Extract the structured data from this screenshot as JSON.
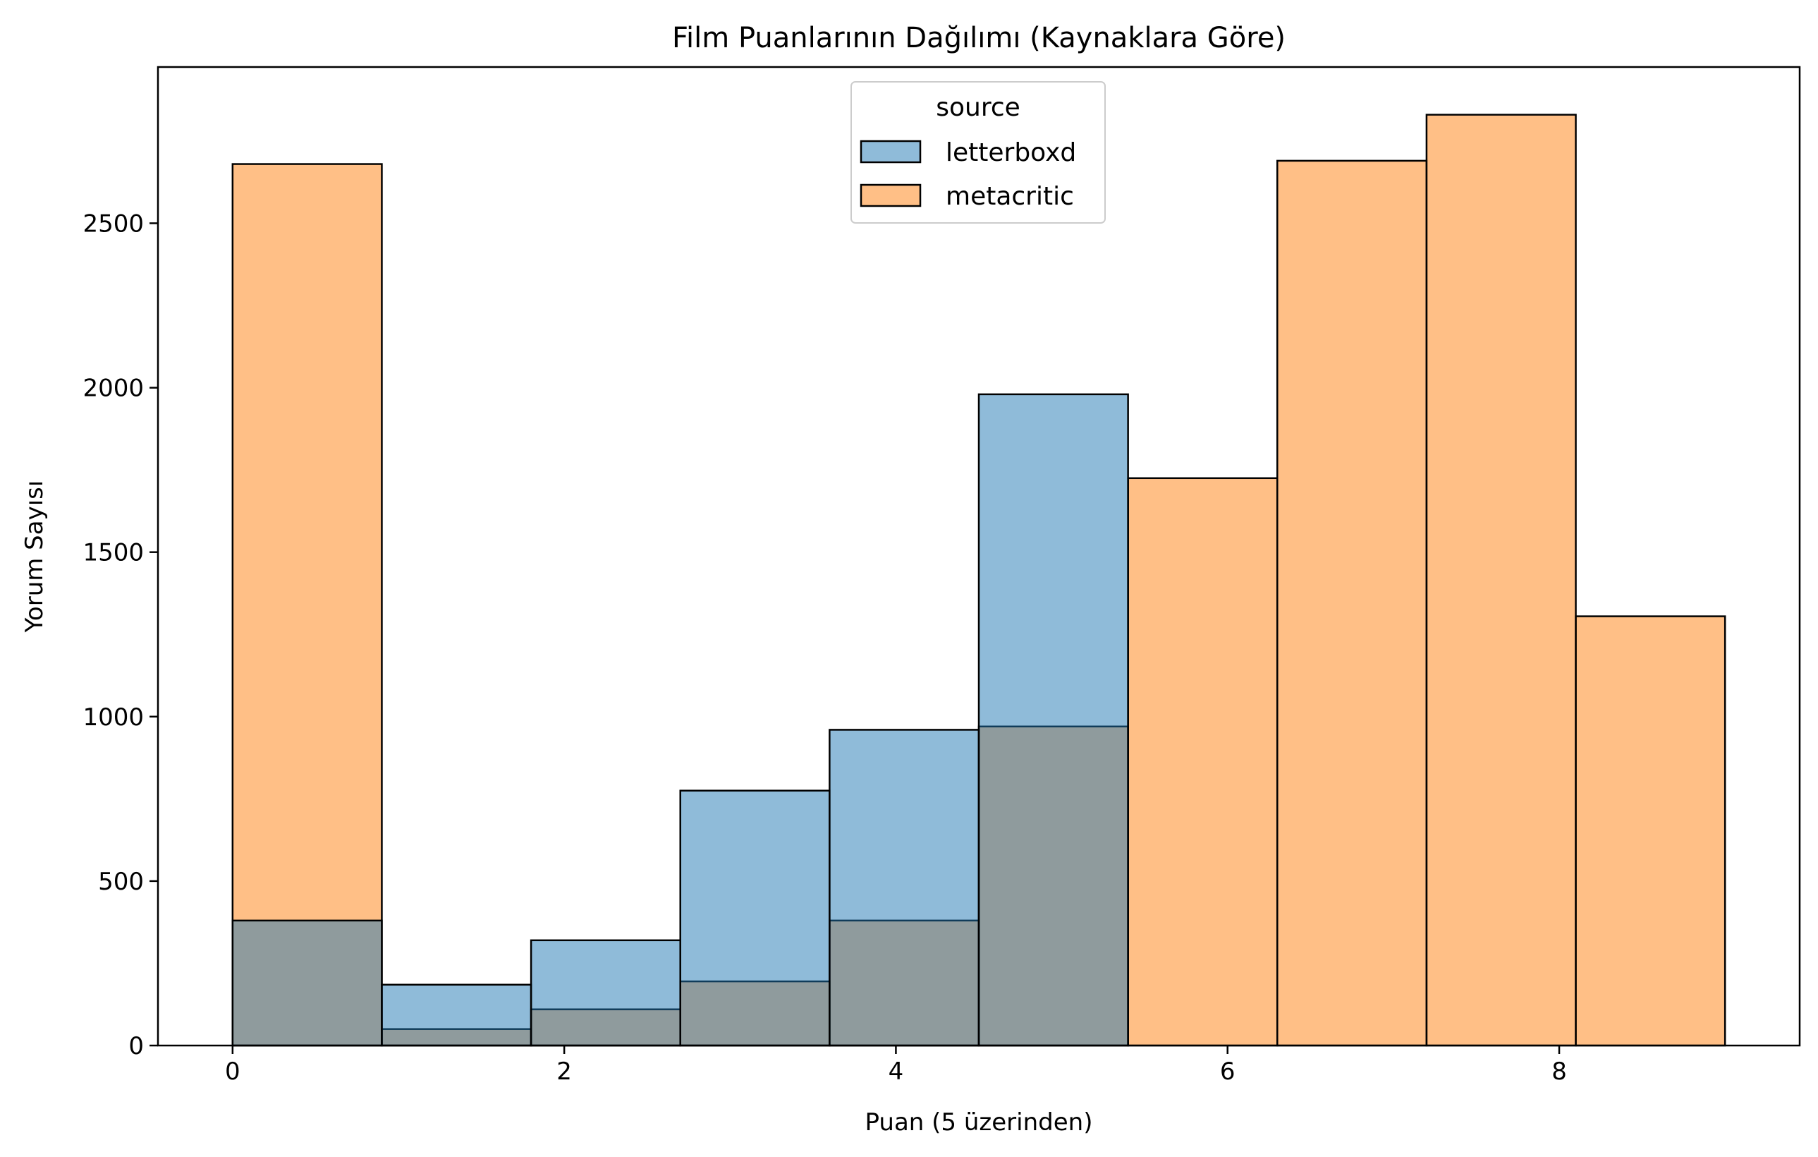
{
  "chart_data": {
    "type": "bar",
    "subtype": "overlaid-histogram",
    "title": "Film Puanlarının Dağılımı (Kaynaklara Göre)",
    "xlabel": "Puan (5 üzerinden)",
    "ylabel": "Yorum Sayısı",
    "xlim": [
      -0.45,
      9.45
    ],
    "ylim": [
      0,
      2975
    ],
    "xticks": [
      0,
      2,
      4,
      6,
      8
    ],
    "xtick_labels": [
      "0",
      "2",
      "4",
      "6",
      "8"
    ],
    "yticks": [
      0,
      500,
      1000,
      1500,
      2000,
      2500
    ],
    "ytick_labels": [
      "0",
      "500",
      "1000",
      "1500",
      "2000",
      "2500"
    ],
    "bin_edges": [
      0,
      0.9,
      1.8,
      2.7,
      3.6,
      4.5,
      5.4,
      6.3,
      7.2,
      8.1,
      9.0
    ],
    "legend": {
      "title": "source",
      "placement": "top-center"
    },
    "grid": false,
    "series": [
      {
        "name": "letterboxd",
        "color": "#1f77b4",
        "values": [
          380,
          185,
          320,
          775,
          960,
          1980,
          0,
          0,
          0,
          0
        ]
      },
      {
        "name": "metacritic",
        "color": "#ff7f0e",
        "values": [
          2680,
          50,
          110,
          195,
          380,
          970,
          1725,
          2690,
          2830,
          1305
        ]
      }
    ]
  }
}
